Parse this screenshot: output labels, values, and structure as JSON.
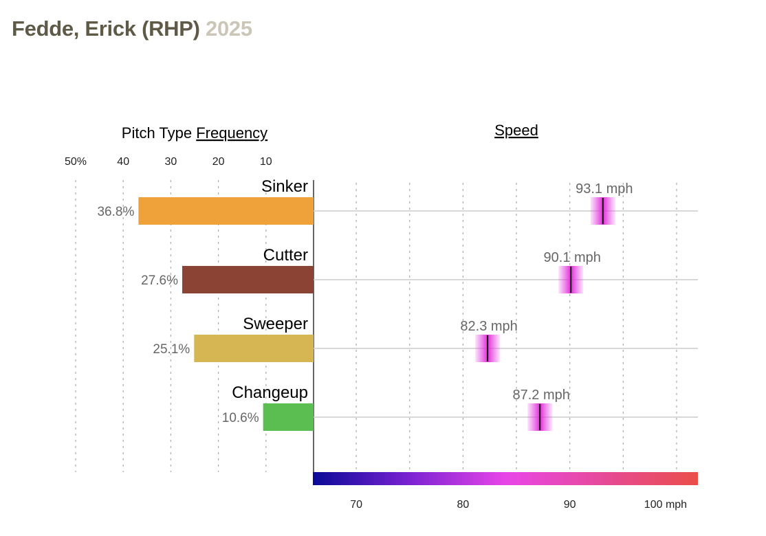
{
  "header": {
    "player": "Fedde, Erick (RHP)",
    "season": "2025"
  },
  "chart_data": {
    "type": "bar",
    "panels": [
      "Pitch Type Frequency",
      "Speed"
    ],
    "frequency_title_prefix": "Pitch Type ",
    "frequency_title_link": "Frequency",
    "speed_title": "Speed",
    "categories": [
      "Sinker",
      "Cutter",
      "Sweeper",
      "Changeup"
    ],
    "frequency": {
      "values": [
        36.8,
        27.6,
        25.1,
        10.6
      ],
      "labels": [
        "36.8%",
        "27.6%",
        "25.1%",
        "10.6%"
      ],
      "ticks": [
        50,
        40,
        30,
        20,
        10
      ],
      "tick_labels": [
        "50%",
        "40",
        "30",
        "20",
        "10"
      ],
      "xlim": [
        0,
        50
      ],
      "colors": [
        "#f0a23a",
        "#8b4433",
        "#d6b653",
        "#5abf50"
      ]
    },
    "speed": {
      "values": [
        93.1,
        90.1,
        82.3,
        87.2
      ],
      "labels": [
        "93.1 mph",
        "90.1 mph",
        "82.3 mph",
        "87.2 mph"
      ],
      "ticks": [
        70,
        80,
        90,
        100
      ],
      "tick_labels": [
        "70",
        "80",
        "90",
        "100 mph"
      ],
      "xlim": [
        66,
        102
      ],
      "colorscale": [
        "#0a0a96",
        "#7a22d2",
        "#e845e8",
        "#e64a99",
        "#ea4d48"
      ]
    },
    "grid": true
  }
}
